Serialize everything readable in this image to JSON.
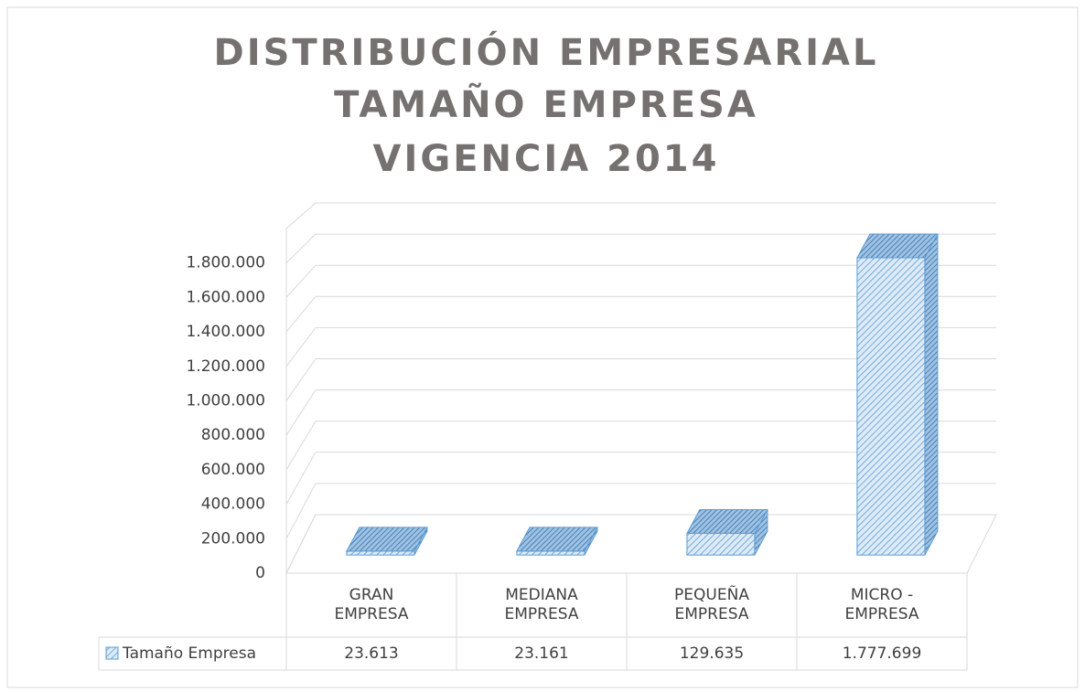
{
  "chart_data": {
    "type": "bar3d",
    "title": [
      "DISTRIBUCIÓN EMPRESARIAL",
      "TAMAÑO EMPRESA",
      "VIGENCIA 2014"
    ],
    "categories": [
      "GRAN EMPRESA",
      "MEDIANA EMPRESA",
      "PEQUEÑA EMPRESA",
      "MICRO - EMPRESA"
    ],
    "series": [
      {
        "name": "Tamaño Empresa",
        "color": "#5b9bd5",
        "values": [
          23613,
          23161,
          129635,
          1777699
        ],
        "value_labels": [
          "23.613",
          "23.161",
          "129.635",
          "1.777.699"
        ]
      }
    ],
    "ylim": [
      0,
      2000000
    ],
    "yticks": [
      0,
      {
        "value": 200000,
        "label": "200.000"
      },
      {
        "value": 400000,
        "label": "400.000"
      },
      {
        "value": 600000,
        "label": "600.000"
      },
      {
        "value": 800000,
        "label": "800.000"
      },
      {
        "value": 1000000,
        "label": "1.000.000"
      },
      {
        "value": 1200000,
        "label": "1.200.000"
      },
      {
        "value": 1400000,
        "label": "1.400.000"
      },
      {
        "value": 1600000,
        "label": "1.600.000"
      },
      {
        "value": 1800000,
        "label": "1.800.000"
      }
    ],
    "grid": true,
    "data_table": true
  }
}
